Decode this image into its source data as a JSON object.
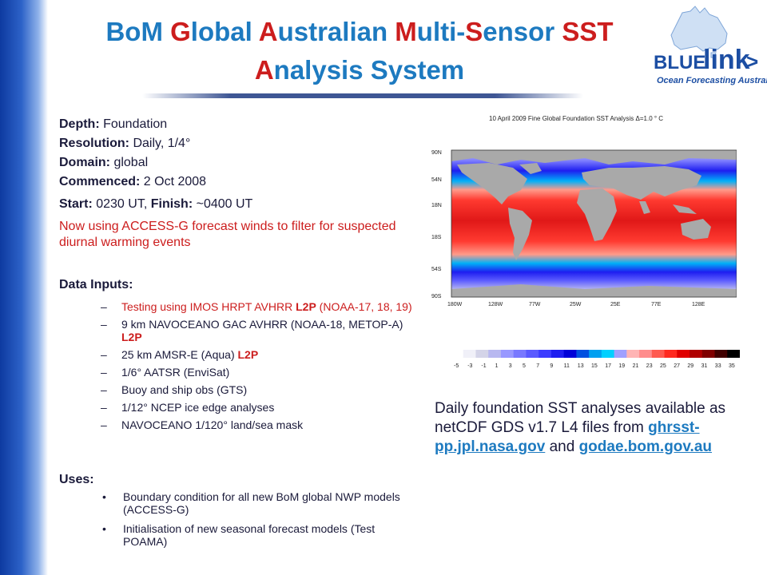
{
  "title": {
    "p1": "BoM ",
    "a1": "G",
    "p2": "lobal ",
    "a2": "A",
    "p3": "ustralian ",
    "a3": "M",
    "p4": "ulti-",
    "a4": "S",
    "p5": "ensor ",
    "a5": "SST",
    "a6": "A",
    "p6": "nalysis System"
  },
  "logo": {
    "blue": "BLUE",
    "link": "link",
    "arrow": ">",
    "tagline": "Ocean Forecasting Australia"
  },
  "specs": [
    {
      "label": "Depth:",
      "value": " Foundation"
    },
    {
      "label": "Resolution:",
      "value": " Daily, 1/4°"
    },
    {
      "label": "Domain:",
      "value": " global"
    },
    {
      "label": "Commenced:",
      "value": " 2 Oct 2008"
    }
  ],
  "start": {
    "label1": "Start:",
    "value1": " 0230 UT, ",
    "label2": "Finish:",
    "value2": " ~0400 UT"
  },
  "note": "Now using ACCESS-G forecast winds to filter for suspected diurnal warming events",
  "inputs": {
    "heading": "Data Inputs:",
    "items": [
      {
        "text": "Testing using IMOS HRPT AVHRR ",
        "tag": "L2P",
        "text2": " (NOAA-17, 18, 19)",
        "red": true
      },
      {
        "text": "9 km NAVOCEANO GAC AVHRR (NOAA-18, METOP-A) ",
        "tag": "L2P",
        "text2": "",
        "red": false
      },
      {
        "text": "25 km AMSR-E (Aqua) ",
        "tag": "L2P",
        "text2": "",
        "red": false
      },
      {
        "text": "1/6° AATSR (EnviSat)",
        "tag": "",
        "text2": "",
        "red": false
      },
      {
        "text": "Buoy and ship obs (GTS)",
        "tag": "",
        "text2": "",
        "red": false
      },
      {
        "text": "1/12° NCEP ice edge analyses",
        "tag": "",
        "text2": "",
        "red": false
      },
      {
        "text": "NAVOCEANO 1/120° land/sea mask",
        "tag": "",
        "text2": "",
        "red": false
      }
    ]
  },
  "uses": {
    "heading": "Uses:",
    "items": [
      "Boundary condition for all new BoM global NWP models (ACCESS-G)",
      "Initialisation of new seasonal forecast models (Test POAMA)"
    ]
  },
  "map": {
    "title": "10 April 2009 Fine Global Foundation SST Analysis  Δ=1.0 ° C",
    "lat_labels": [
      "90N",
      "54N",
      "18N",
      "18S",
      "54S",
      "90S"
    ],
    "lon_labels": [
      "180W",
      "128W",
      "77W",
      "25W",
      "25E",
      "77E",
      "128E"
    ],
    "colorbar_labels": [
      "-5",
      "-3",
      "-1",
      "1",
      "3",
      "5",
      "7",
      "9",
      "11",
      "13",
      "15",
      "17",
      "19",
      "21",
      "23",
      "25",
      "27",
      "29",
      "31",
      "33",
      "35"
    ],
    "colorbar_colors": [
      "#ffffff",
      "#f0f0f8",
      "#d4d4e8",
      "#b8b8f0",
      "#9898ff",
      "#7878ff",
      "#5a5aff",
      "#3c3cff",
      "#1e1ef0",
      "#0000d8",
      "#0050e0",
      "#00a0f0",
      "#00d0ff",
      "#a0a0ff",
      "#ffb4b4",
      "#ff8c8c",
      "#ff5a50",
      "#ff2a20",
      "#e00000",
      "#b00000",
      "#800000",
      "#400000",
      "#000000"
    ]
  },
  "caption": {
    "text1": "Daily foundation SST analyses available as netCDF GDS v1.7 L4 files from ",
    "link1": "ghrsst-pp.jpl.nasa.gov",
    "text2": " and ",
    "link2": "godae.bom.gov.au"
  }
}
